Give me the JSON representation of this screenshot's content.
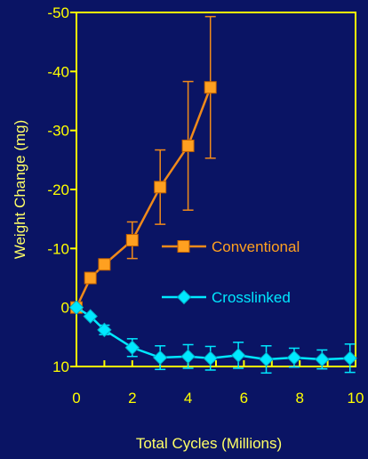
{
  "chart_data": {
    "type": "line",
    "xlabel": "Total Cycles (Millions)",
    "ylabel": "Weight Change (mg)",
    "xlim": [
      0,
      10
    ],
    "ylim": [
      10,
      -50
    ],
    "x_ticks": [
      0,
      2,
      4,
      6,
      8,
      10
    ],
    "x_tick_labels": [
      "0",
      "2",
      "4",
      "6",
      "8",
      "10"
    ],
    "y_ticks": [
      -50,
      -40,
      -30,
      -20,
      -10,
      0,
      10
    ],
    "y_tick_labels": [
      "-50",
      "-40",
      "-30",
      "-20",
      "-10",
      "0",
      "10"
    ],
    "y_reversed": true,
    "grid": false,
    "colors": {
      "background": "#0a1464",
      "axis": "#ffff00",
      "text": "#ffff00",
      "x_ticks_text": "#ffff00",
      "title_text": "#ffff66"
    },
    "series": [
      {
        "name": "Conventional",
        "color": "#ffa020",
        "line_color": "#f08a1a",
        "marker": "square",
        "points": [
          {
            "x": 0.0,
            "y": 0.0,
            "err": 0
          },
          {
            "x": 0.5,
            "y": -5.0,
            "err": 0
          },
          {
            "x": 1.0,
            "y": -7.3,
            "err": 0
          },
          {
            "x": 2.0,
            "y": -11.4,
            "err": 3.1
          },
          {
            "x": 3.0,
            "y": -20.4,
            "err": 6.3
          },
          {
            "x": 4.0,
            "y": -27.4,
            "err": 10.9
          },
          {
            "x": 4.8,
            "y": -37.3,
            "err": 12.0
          }
        ]
      },
      {
        "name": "Crosslinked",
        "color": "#00e8ff",
        "line_color": "#00e8ff",
        "marker": "diamond",
        "points": [
          {
            "x": 0.0,
            "y": 0.0,
            "err": 0
          },
          {
            "x": 0.5,
            "y": 1.5,
            "err": 0
          },
          {
            "x": 1.0,
            "y": 3.8,
            "err": 0.8
          },
          {
            "x": 2.0,
            "y": 6.8,
            "err": 1.5
          },
          {
            "x": 3.0,
            "y": 8.5,
            "err": 2.0
          },
          {
            "x": 4.0,
            "y": 8.3,
            "err": 2.0
          },
          {
            "x": 4.8,
            "y": 8.6,
            "err": 2.0
          },
          {
            "x": 5.8,
            "y": 8.1,
            "err": 2.2
          },
          {
            "x": 6.8,
            "y": 8.8,
            "err": 2.3
          },
          {
            "x": 7.8,
            "y": 8.5,
            "err": 1.6
          },
          {
            "x": 8.8,
            "y": 8.8,
            "err": 1.6
          },
          {
            "x": 9.8,
            "y": 8.6,
            "err": 2.4
          }
        ]
      }
    ],
    "legend": {
      "placement": "center-right"
    }
  }
}
